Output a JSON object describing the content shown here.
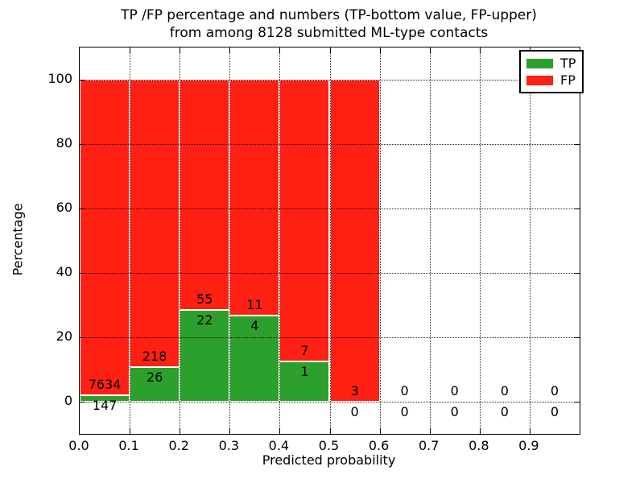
{
  "title": {
    "line1": "TP /FP percentage and numbers (TP-bottom value, FP-upper)",
    "line2": "from among 8128 submitted ML-type contacts"
  },
  "chart_data": {
    "type": "bar",
    "stacked": true,
    "title": "TP /FP percentage and numbers (TP-bottom value, FP-upper)\nfrom among 8128 submitted ML-type contacts",
    "xlabel": "Predicted probability",
    "ylabel": "Percentage",
    "xlim": [
      0.0,
      1.0
    ],
    "ylim": [
      -10,
      110
    ],
    "x_tick_labels": [
      "0.0",
      "0.1",
      "0.2",
      "0.3",
      "0.4",
      "0.5",
      "0.6",
      "0.7",
      "0.8",
      "0.9"
    ],
    "y_tick_values": [
      0,
      20,
      40,
      60,
      80,
      100
    ],
    "grid": "dotted",
    "total_contacts": 8128,
    "categories": [
      "0.0-0.1",
      "0.1-0.2",
      "0.2-0.3",
      "0.3-0.4",
      "0.4-0.5",
      "0.5-0.6",
      "0.6-0.7",
      "0.7-0.8",
      "0.8-0.9",
      "0.9-1.0"
    ],
    "series": [
      {
        "name": "TP",
        "color": "#2ca02c",
        "counts": [
          147,
          26,
          22,
          4,
          1,
          0,
          0,
          0,
          0,
          0
        ],
        "percent": [
          1.89,
          10.66,
          28.57,
          26.67,
          12.5,
          0,
          0,
          0,
          0,
          0
        ]
      },
      {
        "name": "FP",
        "color": "#ff2014",
        "counts": [
          7634,
          218,
          55,
          11,
          7,
          3,
          0,
          0,
          0,
          0
        ],
        "percent": [
          98.11,
          89.34,
          71.43,
          73.33,
          87.5,
          100,
          0,
          0,
          0,
          0
        ]
      }
    ],
    "legend": {
      "position": "upper right",
      "entries": [
        {
          "label": "TP"
        },
        {
          "label": "FP"
        }
      ]
    },
    "bar_edge_color": "#ffffff",
    "label_note": "FP count above green/red boundary, TP count below"
  }
}
